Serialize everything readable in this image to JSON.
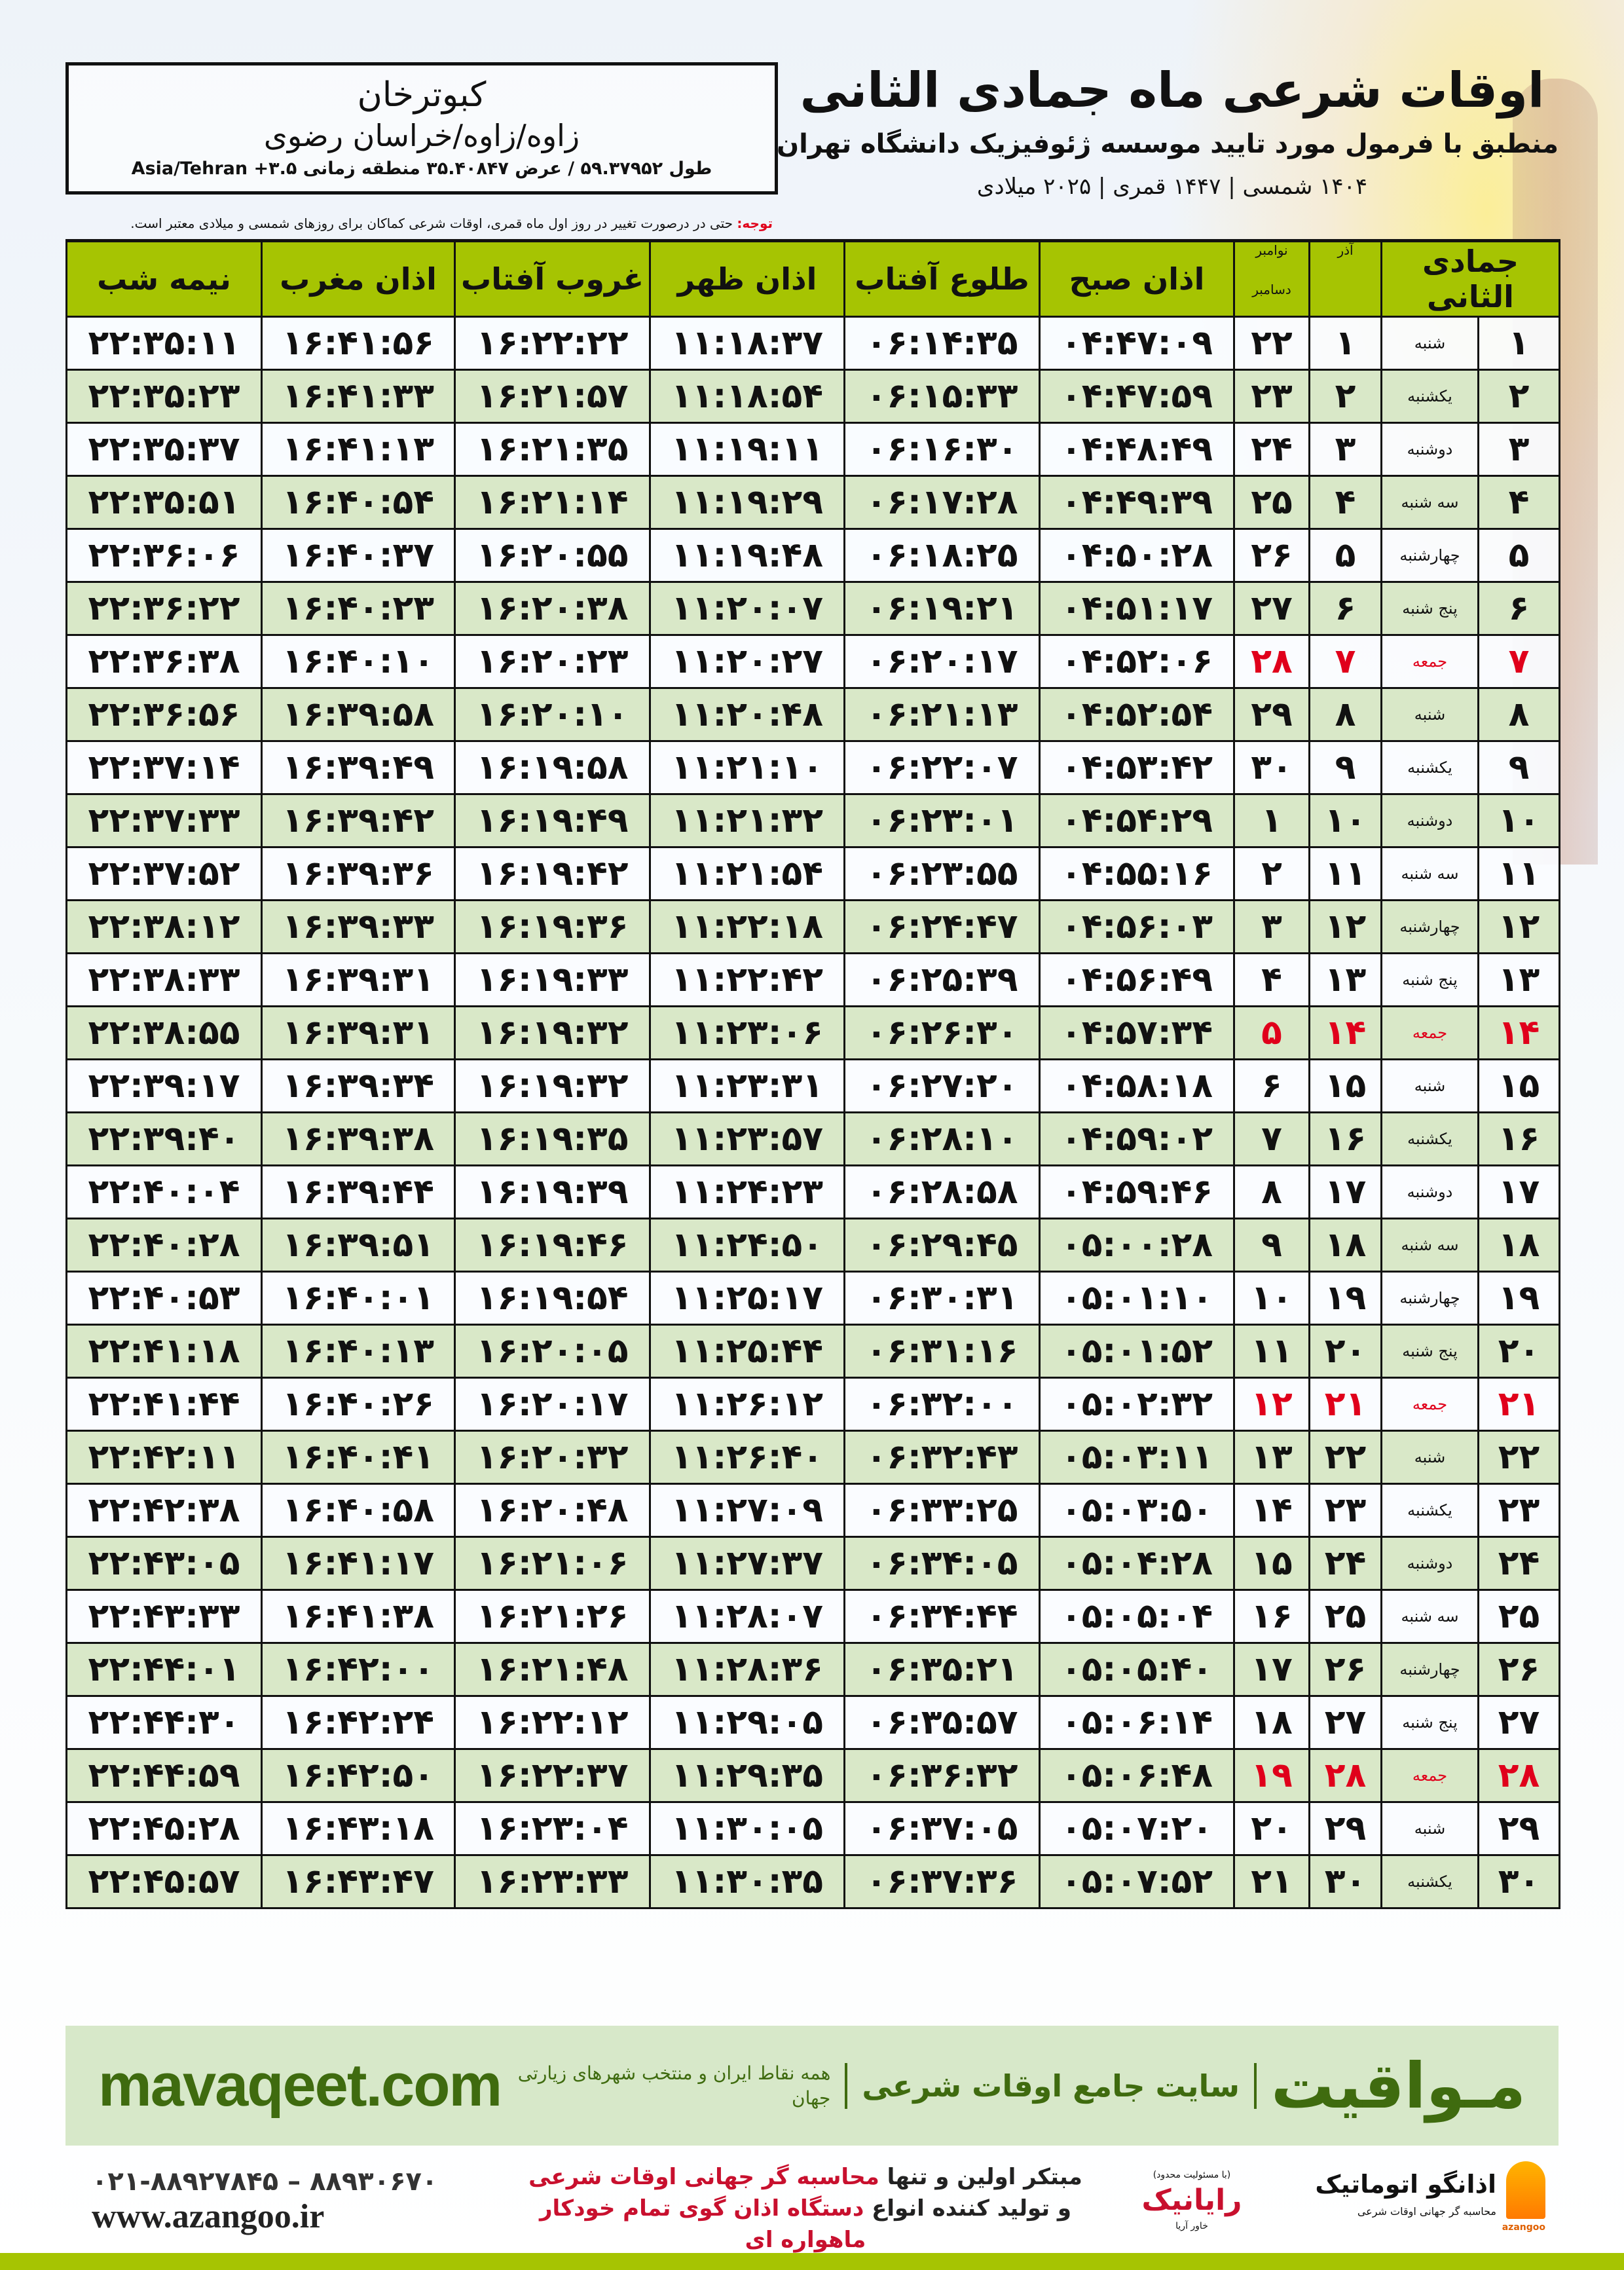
{
  "header": {
    "title": "اوقات شرعی ماه جمادی الثانی",
    "subtitle": "منطبق با فرمول مورد تایید موسسه ژئوفیزیک دانشگاه تهران",
    "years": "۱۴۰۴ شمسی | ۱۴۴۷ قمری | ۲۰۲۵ میلادی"
  },
  "location": {
    "city": "کبوترخان",
    "region": "زاوه/زاوه/خراسان رضوی",
    "coords": "طول ۵۹.۳۷۹۵۲ / عرض ۳۵.۴۰۸۴۷ منطقه زمانی ۳.۵+ Asia/Tehran"
  },
  "note": {
    "label": "توجه:",
    "text": " حتی در درصورت تغییر در روز اول ماه قمری، اوقات شرعی کماکان برای روزهای شمسی و میلادی معتبر است."
  },
  "table": {
    "headers": {
      "hijri": "جمادی الثانی",
      "azar": "آذر",
      "gregorian_top": "نوامبر",
      "gregorian_bottom": "دسامبر",
      "fajr": "اذان صبح",
      "sunrise": "طلوع آفتاب",
      "dhuhr": "اذان ظهر",
      "sunset": "غروب آفتاب",
      "maghrib": "اذان مغرب",
      "midnight": "نیمه شب"
    },
    "holiday_color": "#e0001b",
    "header_color": "#a6c402",
    "rows": [
      {
        "hijri": "۱",
        "weekday": "شنبه",
        "azar": "۱",
        "greg": "۲۲",
        "times": [
          "۰۴:۴۷:۰۹",
          "۰۶:۱۴:۳۵",
          "۱۱:۱۸:۳۷",
          "۱۶:۲۲:۲۲",
          "۱۶:۴۱:۵۶",
          "۲۲:۳۵:۱۱"
        ]
      },
      {
        "hijri": "۲",
        "weekday": "یکشنبه",
        "azar": "۲",
        "greg": "۲۳",
        "times": [
          "۰۴:۴۷:۵۹",
          "۰۶:۱۵:۳۳",
          "۱۱:۱۸:۵۴",
          "۱۶:۲۱:۵۷",
          "۱۶:۴۱:۳۳",
          "۲۲:۳۵:۲۳"
        ]
      },
      {
        "hijri": "۳",
        "weekday": "دوشنبه",
        "azar": "۳",
        "greg": "۲۴",
        "times": [
          "۰۴:۴۸:۴۹",
          "۰۶:۱۶:۳۰",
          "۱۱:۱۹:۱۱",
          "۱۶:۲۱:۳۵",
          "۱۶:۴۱:۱۳",
          "۲۲:۳۵:۳۷"
        ]
      },
      {
        "hijri": "۴",
        "weekday": "سه شنبه",
        "azar": "۴",
        "greg": "۲۵",
        "times": [
          "۰۴:۴۹:۳۹",
          "۰۶:۱۷:۲۸",
          "۱۱:۱۹:۲۹",
          "۱۶:۲۱:۱۴",
          "۱۶:۴۰:۵۴",
          "۲۲:۳۵:۵۱"
        ]
      },
      {
        "hijri": "۵",
        "weekday": "چهارشنبه",
        "azar": "۵",
        "greg": "۲۶",
        "times": [
          "۰۴:۵۰:۲۸",
          "۰۶:۱۸:۲۵",
          "۱۱:۱۹:۴۸",
          "۱۶:۲۰:۵۵",
          "۱۶:۴۰:۳۷",
          "۲۲:۳۶:۰۶"
        ]
      },
      {
        "hijri": "۶",
        "weekday": "پنج شنبه",
        "azar": "۶",
        "greg": "۲۷",
        "times": [
          "۰۴:۵۱:۱۷",
          "۰۶:۱۹:۲۱",
          "۱۱:۲۰:۰۷",
          "۱۶:۲۰:۳۸",
          "۱۶:۴۰:۲۳",
          "۲۲:۳۶:۲۲"
        ]
      },
      {
        "hijri": "۷",
        "weekday": "جمعه",
        "azar": "۷",
        "greg": "۲۸",
        "holiday": true,
        "times": [
          "۰۴:۵۲:۰۶",
          "۰۶:۲۰:۱۷",
          "۱۱:۲۰:۲۷",
          "۱۶:۲۰:۲۳",
          "۱۶:۴۰:۱۰",
          "۲۲:۳۶:۳۸"
        ]
      },
      {
        "hijri": "۸",
        "weekday": "شنبه",
        "azar": "۸",
        "greg": "۲۹",
        "times": [
          "۰۴:۵۲:۵۴",
          "۰۶:۲۱:۱۳",
          "۱۱:۲۰:۴۸",
          "۱۶:۲۰:۱۰",
          "۱۶:۳۹:۵۸",
          "۲۲:۳۶:۵۶"
        ]
      },
      {
        "hijri": "۹",
        "weekday": "یکشنبه",
        "azar": "۹",
        "greg": "۳۰",
        "times": [
          "۰۴:۵۳:۴۲",
          "۰۶:۲۲:۰۷",
          "۱۱:۲۱:۱۰",
          "۱۶:۱۹:۵۸",
          "۱۶:۳۹:۴۹",
          "۲۲:۳۷:۱۴"
        ]
      },
      {
        "hijri": "۱۰",
        "weekday": "دوشنبه",
        "azar": "۱۰",
        "greg": "۱",
        "times": [
          "۰۴:۵۴:۲۹",
          "۰۶:۲۳:۰۱",
          "۱۱:۲۱:۳۲",
          "۱۶:۱۹:۴۹",
          "۱۶:۳۹:۴۲",
          "۲۲:۳۷:۳۳"
        ]
      },
      {
        "hijri": "۱۱",
        "weekday": "سه شنبه",
        "azar": "۱۱",
        "greg": "۲",
        "times": [
          "۰۴:۵۵:۱۶",
          "۰۶:۲۳:۵۵",
          "۱۱:۲۱:۵۴",
          "۱۶:۱۹:۴۲",
          "۱۶:۳۹:۳۶",
          "۲۲:۳۷:۵۲"
        ]
      },
      {
        "hijri": "۱۲",
        "weekday": "چهارشنبه",
        "azar": "۱۲",
        "greg": "۳",
        "times": [
          "۰۴:۵۶:۰۳",
          "۰۶:۲۴:۴۷",
          "۱۱:۲۲:۱۸",
          "۱۶:۱۹:۳۶",
          "۱۶:۳۹:۳۳",
          "۲۲:۳۸:۱۲"
        ]
      },
      {
        "hijri": "۱۳",
        "weekday": "پنج شنبه",
        "azar": "۱۳",
        "greg": "۴",
        "times": [
          "۰۴:۵۶:۴۹",
          "۰۶:۲۵:۳۹",
          "۱۱:۲۲:۴۲",
          "۱۶:۱۹:۳۳",
          "۱۶:۳۹:۳۱",
          "۲۲:۳۸:۳۳"
        ]
      },
      {
        "hijri": "۱۴",
        "weekday": "جمعه",
        "azar": "۱۴",
        "greg": "۵",
        "holiday": true,
        "times": [
          "۰۴:۵۷:۳۴",
          "۰۶:۲۶:۳۰",
          "۱۱:۲۳:۰۶",
          "۱۶:۱۹:۳۲",
          "۱۶:۳۹:۳۱",
          "۲۲:۳۸:۵۵"
        ]
      },
      {
        "hijri": "۱۵",
        "weekday": "شنبه",
        "azar": "۱۵",
        "greg": "۶",
        "times": [
          "۰۴:۵۸:۱۸",
          "۰۶:۲۷:۲۰",
          "۱۱:۲۳:۳۱",
          "۱۶:۱۹:۳۲",
          "۱۶:۳۹:۳۴",
          "۲۲:۳۹:۱۷"
        ]
      },
      {
        "hijri": "۱۶",
        "weekday": "یکشنبه",
        "azar": "۱۶",
        "greg": "۷",
        "times": [
          "۰۴:۵۹:۰۲",
          "۰۶:۲۸:۱۰",
          "۱۱:۲۳:۵۷",
          "۱۶:۱۹:۳۵",
          "۱۶:۳۹:۳۸",
          "۲۲:۳۹:۴۰"
        ]
      },
      {
        "hijri": "۱۷",
        "weekday": "دوشنبه",
        "azar": "۱۷",
        "greg": "۸",
        "times": [
          "۰۴:۵۹:۴۶",
          "۰۶:۲۸:۵۸",
          "۱۱:۲۴:۲۳",
          "۱۶:۱۹:۳۹",
          "۱۶:۳۹:۴۴",
          "۲۲:۴۰:۰۴"
        ]
      },
      {
        "hijri": "۱۸",
        "weekday": "سه شنبه",
        "azar": "۱۸",
        "greg": "۹",
        "times": [
          "۰۵:۰۰:۲۸",
          "۰۶:۲۹:۴۵",
          "۱۱:۲۴:۵۰",
          "۱۶:۱۹:۴۶",
          "۱۶:۳۹:۵۱",
          "۲۲:۴۰:۲۸"
        ]
      },
      {
        "hijri": "۱۹",
        "weekday": "چهارشنبه",
        "azar": "۱۹",
        "greg": "۱۰",
        "times": [
          "۰۵:۰۱:۱۰",
          "۰۶:۳۰:۳۱",
          "۱۱:۲۵:۱۷",
          "۱۶:۱۹:۵۴",
          "۱۶:۴۰:۰۱",
          "۲۲:۴۰:۵۳"
        ]
      },
      {
        "hijri": "۲۰",
        "weekday": "پنج شنبه",
        "azar": "۲۰",
        "greg": "۱۱",
        "times": [
          "۰۵:۰۱:۵۲",
          "۰۶:۳۱:۱۶",
          "۱۱:۲۵:۴۴",
          "۱۶:۲۰:۰۵",
          "۱۶:۴۰:۱۳",
          "۲۲:۴۱:۱۸"
        ]
      },
      {
        "hijri": "۲۱",
        "weekday": "جمعه",
        "azar": "۲۱",
        "greg": "۱۲",
        "holiday": true,
        "times": [
          "۰۵:۰۲:۳۲",
          "۰۶:۳۲:۰۰",
          "۱۱:۲۶:۱۲",
          "۱۶:۲۰:۱۷",
          "۱۶:۴۰:۲۶",
          "۲۲:۴۱:۴۴"
        ]
      },
      {
        "hijri": "۲۲",
        "weekday": "شنبه",
        "azar": "۲۲",
        "greg": "۱۳",
        "times": [
          "۰۵:۰۳:۱۱",
          "۰۶:۳۲:۴۳",
          "۱۱:۲۶:۴۰",
          "۱۶:۲۰:۳۲",
          "۱۶:۴۰:۴۱",
          "۲۲:۴۲:۱۱"
        ]
      },
      {
        "hijri": "۲۳",
        "weekday": "یکشنبه",
        "azar": "۲۳",
        "greg": "۱۴",
        "times": [
          "۰۵:۰۳:۵۰",
          "۰۶:۳۳:۲۵",
          "۱۱:۲۷:۰۹",
          "۱۶:۲۰:۴۸",
          "۱۶:۴۰:۵۸",
          "۲۲:۴۲:۳۸"
        ]
      },
      {
        "hijri": "۲۴",
        "weekday": "دوشنبه",
        "azar": "۲۴",
        "greg": "۱۵",
        "times": [
          "۰۵:۰۴:۲۸",
          "۰۶:۳۴:۰۵",
          "۱۱:۲۷:۳۷",
          "۱۶:۲۱:۰۶",
          "۱۶:۴۱:۱۷",
          "۲۲:۴۳:۰۵"
        ]
      },
      {
        "hijri": "۲۵",
        "weekday": "سه شنبه",
        "azar": "۲۵",
        "greg": "۱۶",
        "times": [
          "۰۵:۰۵:۰۴",
          "۰۶:۳۴:۴۴",
          "۱۱:۲۸:۰۷",
          "۱۶:۲۱:۲۶",
          "۱۶:۴۱:۳۸",
          "۲۲:۴۳:۳۳"
        ]
      },
      {
        "hijri": "۲۶",
        "weekday": "چهارشنبه",
        "azar": "۲۶",
        "greg": "۱۷",
        "times": [
          "۰۵:۰۵:۴۰",
          "۰۶:۳۵:۲۱",
          "۱۱:۲۸:۳۶",
          "۱۶:۲۱:۴۸",
          "۱۶:۴۲:۰۰",
          "۲۲:۴۴:۰۱"
        ]
      },
      {
        "hijri": "۲۷",
        "weekday": "پنج شنبه",
        "azar": "۲۷",
        "greg": "۱۸",
        "times": [
          "۰۵:۰۶:۱۴",
          "۰۶:۳۵:۵۷",
          "۱۱:۲۹:۰۵",
          "۱۶:۲۲:۱۲",
          "۱۶:۴۲:۲۴",
          "۲۲:۴۴:۳۰"
        ]
      },
      {
        "hijri": "۲۸",
        "weekday": "جمعه",
        "azar": "۲۸",
        "greg": "۱۹",
        "holiday": true,
        "times": [
          "۰۵:۰۶:۴۸",
          "۰۶:۳۶:۳۲",
          "۱۱:۲۹:۳۵",
          "۱۶:۲۲:۳۷",
          "۱۶:۴۲:۵۰",
          "۲۲:۴۴:۵۹"
        ]
      },
      {
        "hijri": "۲۹",
        "weekday": "شنبه",
        "azar": "۲۹",
        "greg": "۲۰",
        "times": [
          "۰۵:۰۷:۲۰",
          "۰۶:۳۷:۰۵",
          "۱۱:۳۰:۰۵",
          "۱۶:۲۳:۰۴",
          "۱۶:۴۳:۱۸",
          "۲۲:۴۵:۲۸"
        ]
      },
      {
        "hijri": "۳۰",
        "weekday": "یکشنبه",
        "azar": "۳۰",
        "greg": "۲۱",
        "times": [
          "۰۵:۰۷:۵۲",
          "۰۶:۳۷:۳۶",
          "۱۱:۳۰:۳۵",
          "۱۶:۲۳:۳۳",
          "۱۶:۴۳:۴۷",
          "۲۲:۴۵:۵۷"
        ]
      }
    ]
  },
  "banner": {
    "brand": "مـواقیت",
    "slogan": "سایت جامع اوقات شرعی",
    "sub": "همه نقاط ایران و منتخب شهرهای زیارتی جهان",
    "url": "mavaqeet.com",
    "color": "#3f6b0f"
  },
  "footer": {
    "phone": "۰۲۱-۸۸۹۲۷۸۴۵ – ۸۸۹۳۰۶۷۰",
    "website": "www.azangoo.ir",
    "promo_line1_a": "مبتکر اولین و تنها ",
    "promo_line1_b": "محاسبه گر جهانی اوقات شرعی",
    "promo_line2_a": "و تولید کننده انواع ",
    "promo_line2_b": "دستگاه اذان گوی تمام خودکار ماهواره ای",
    "logo_rayanik_small": "(با مسئولیت محدود)",
    "logo_rayanik_a": "رایانیک",
    "logo_rayanik_b": "خاور آریا",
    "logo_azangoo_name": "اذانگو اتوماتیک",
    "logo_azangoo_tag": "محاسبه گر جهانی اوقات شرعی",
    "logo_azangoo_en": "azangoo"
  }
}
